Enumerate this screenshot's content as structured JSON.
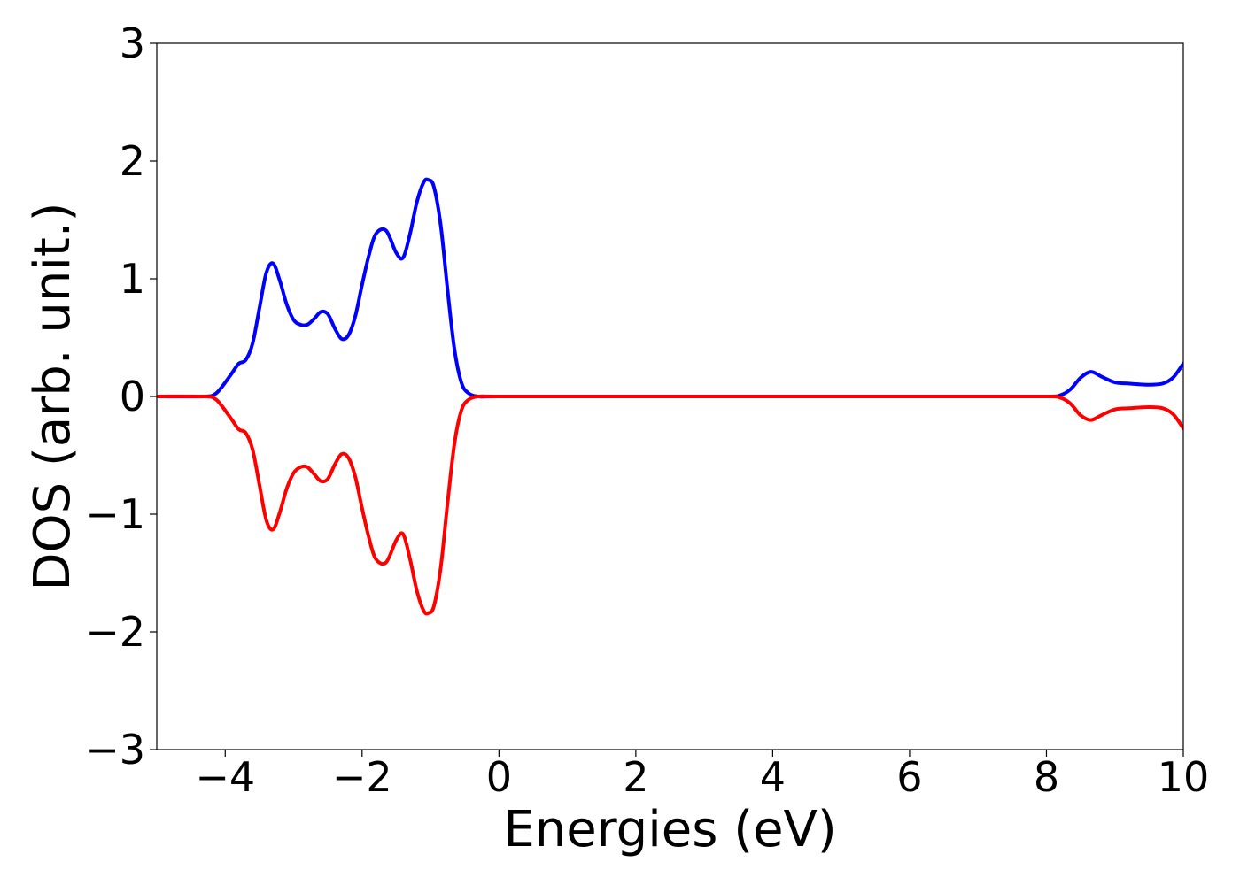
{
  "chart_data": {
    "type": "line",
    "title": "",
    "xlabel": "Energies (eV)",
    "ylabel": "DOS (arb. unit.)",
    "xlim": [
      -5,
      10
    ],
    "ylim": [
      -3,
      3
    ],
    "xticks": [
      -4,
      -2,
      0,
      2,
      4,
      6,
      8,
      10
    ],
    "xtick_labels": [
      "−4",
      "−2",
      "0",
      "2",
      "4",
      "6",
      "8",
      "10"
    ],
    "yticks": [
      3,
      2,
      1,
      0,
      -1,
      -2,
      -3
    ],
    "ytick_labels": [
      "3",
      "2",
      "1",
      "0",
      "−1",
      "−2",
      "−3"
    ],
    "grid": false,
    "legend": "none",
    "series": [
      {
        "color": "#0000ff",
        "x": [
          -5.0,
          -4.3,
          -4.15,
          -4.05,
          -3.9,
          -3.8,
          -3.7,
          -3.6,
          -3.5,
          -3.4,
          -3.3,
          -3.2,
          -3.1,
          -3.0,
          -2.9,
          -2.8,
          -2.7,
          -2.6,
          -2.5,
          -2.4,
          -2.3,
          -2.2,
          -2.1,
          -2.0,
          -1.9,
          -1.8,
          -1.65,
          -1.5,
          -1.4,
          -1.3,
          -1.2,
          -1.1,
          -1.03,
          -0.95,
          -0.85,
          -0.75,
          -0.65,
          -0.55,
          -0.45,
          -0.3,
          0.0,
          2.0,
          4.0,
          6.0,
          8.0,
          8.2,
          8.35,
          8.5,
          8.65,
          8.8,
          9.0,
          9.2,
          9.5,
          9.7,
          9.85,
          10.0
        ],
        "y": [
          0.0,
          0.0,
          0.02,
          0.08,
          0.2,
          0.28,
          0.31,
          0.45,
          0.75,
          1.05,
          1.13,
          0.98,
          0.78,
          0.65,
          0.61,
          0.61,
          0.66,
          0.72,
          0.7,
          0.58,
          0.49,
          0.52,
          0.68,
          0.95,
          1.2,
          1.38,
          1.41,
          1.22,
          1.18,
          1.38,
          1.65,
          1.82,
          1.84,
          1.78,
          1.45,
          0.9,
          0.4,
          0.12,
          0.03,
          0.0,
          0.0,
          0.0,
          0.0,
          0.0,
          0.0,
          0.01,
          0.06,
          0.16,
          0.21,
          0.17,
          0.12,
          0.11,
          0.1,
          0.11,
          0.16,
          0.28
        ]
      },
      {
        "color": "#ff0000",
        "x": [
          -5.0,
          -4.3,
          -4.15,
          -4.05,
          -3.9,
          -3.8,
          -3.7,
          -3.6,
          -3.5,
          -3.4,
          -3.3,
          -3.2,
          -3.1,
          -3.0,
          -2.9,
          -2.8,
          -2.7,
          -2.6,
          -2.5,
          -2.4,
          -2.3,
          -2.2,
          -2.1,
          -2.0,
          -1.9,
          -1.8,
          -1.65,
          -1.5,
          -1.4,
          -1.3,
          -1.2,
          -1.1,
          -1.03,
          -0.95,
          -0.85,
          -0.75,
          -0.65,
          -0.55,
          -0.45,
          -0.3,
          0.0,
          2.0,
          4.0,
          6.0,
          8.0,
          8.2,
          8.35,
          8.5,
          8.65,
          8.8,
          9.0,
          9.2,
          9.5,
          9.7,
          9.85,
          10.0
        ],
        "y": [
          0.0,
          0.0,
          -0.02,
          -0.08,
          -0.2,
          -0.28,
          -0.31,
          -0.45,
          -0.75,
          -1.05,
          -1.13,
          -0.98,
          -0.78,
          -0.65,
          -0.6,
          -0.6,
          -0.66,
          -0.72,
          -0.7,
          -0.58,
          -0.49,
          -0.52,
          -0.68,
          -0.95,
          -1.2,
          -1.38,
          -1.41,
          -1.22,
          -1.17,
          -1.38,
          -1.65,
          -1.82,
          -1.84,
          -1.78,
          -1.45,
          -0.9,
          -0.4,
          -0.12,
          -0.03,
          0.0,
          0.0,
          0.0,
          0.0,
          0.0,
          0.0,
          -0.01,
          -0.06,
          -0.16,
          -0.2,
          -0.16,
          -0.11,
          -0.1,
          -0.09,
          -0.1,
          -0.15,
          -0.27
        ]
      }
    ]
  }
}
